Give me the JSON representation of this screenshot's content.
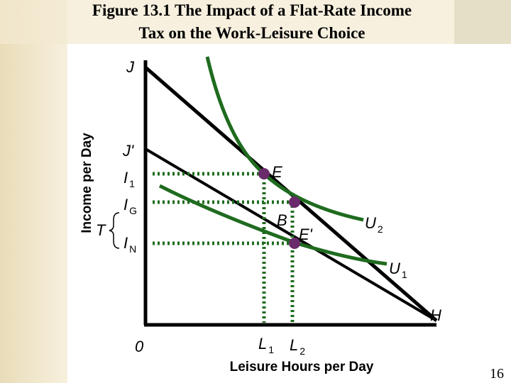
{
  "title": [
    "Figure 13.1 The Impact of a Flat-Rate Income",
    "Tax on the Work-Leisure Choice"
  ],
  "y_axis_label": "Income per Day",
  "x_axis_label": "Leisure Hours per Day",
  "labels": [
    {
      "main": "J"
    },
    {
      "main": "J'"
    },
    {
      "main": "I",
      "sub": "1"
    },
    {
      "main": "I",
      "sub": "G"
    },
    {
      "main": "T"
    },
    {
      "main": "I",
      "sub": "N"
    },
    {
      "main": "E"
    },
    {
      "main": "B"
    },
    {
      "main": "E'"
    },
    {
      "main": "U",
      "sub": "2"
    },
    {
      "main": "U",
      "sub": "1"
    },
    {
      "main": "H"
    },
    {
      "main": "0"
    },
    {
      "main": "L",
      "sub": "1"
    },
    {
      "main": "L",
      "sub": "2"
    }
  ],
  "page_number": "16"
}
